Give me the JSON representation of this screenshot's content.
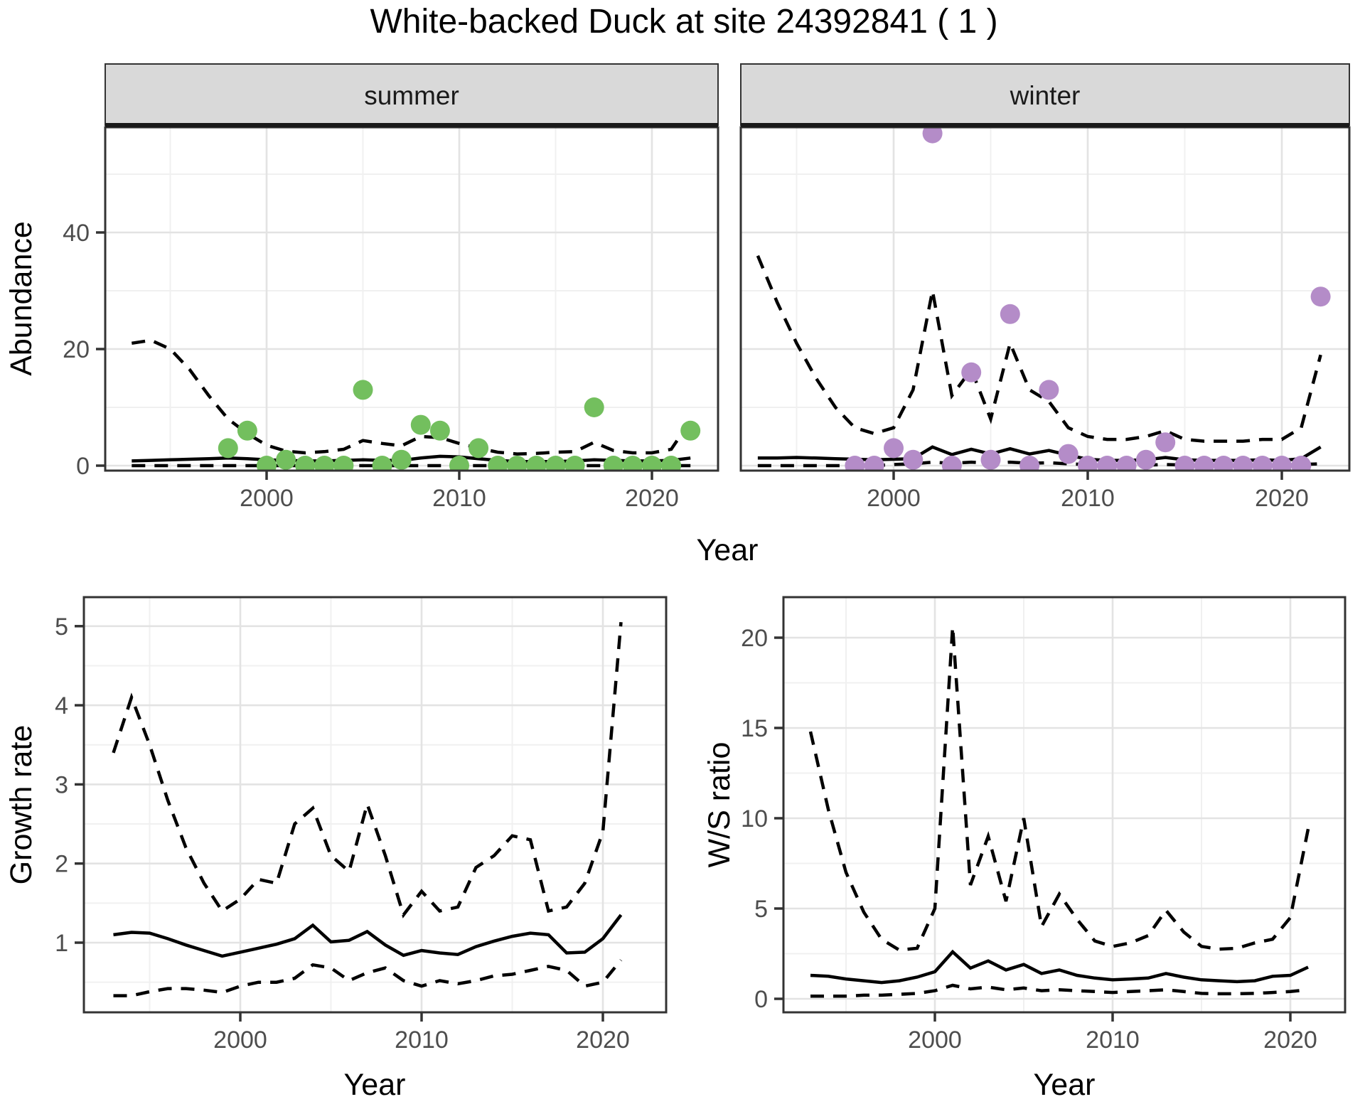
{
  "title": "White-backed Duck at site 24392841 ( 1 )",
  "labels": {
    "year": "Year",
    "abundance": "Abundance",
    "growth_rate": "Growth rate",
    "ws_ratio": "W/S ratio",
    "facet_summer": "summer",
    "facet_winter": "winter"
  },
  "colors": {
    "summer_point": "#73BF5E",
    "winter_point": "#B48CC8",
    "line": "#000000",
    "strip_bg": "#D9D9D9",
    "panel_border": "#333333",
    "grid_major": "#E3E3E3",
    "grid_minor": "#F0F0F0",
    "tick_label": "#4d4d4d"
  },
  "chart_data": [
    {
      "id": "abundance_summer",
      "type": "line",
      "facet": "summer",
      "xlabel": "Year",
      "ylabel": "Abundance",
      "x_ticks": [
        2000,
        2010,
        2020
      ],
      "y_ticks": [
        0,
        20,
        40
      ],
      "xlim": [
        1991.5,
        2023.5
      ],
      "ylim": [
        -2,
        58
      ],
      "grid": true,
      "legend": "none",
      "x": [
        1993,
        1994,
        1995,
        1996,
        1997,
        1998,
        1999,
        2000,
        2001,
        2002,
        2003,
        2004,
        2005,
        2006,
        2007,
        2008,
        2009,
        2010,
        2011,
        2012,
        2013,
        2014,
        2015,
        2016,
        2017,
        2018,
        2019,
        2020,
        2021,
        2022
      ],
      "series": [
        {
          "name": "upper_ci",
          "style": "dashed",
          "values": [
            21,
            21.5,
            20,
            16.5,
            12,
            8,
            5.5,
            3.5,
            2.5,
            2.2,
            2.4,
            2.8,
            4.3,
            3.8,
            3.4,
            5,
            4.8,
            3.8,
            3,
            2.3,
            2,
            2.1,
            2.3,
            2.4,
            4,
            2.6,
            2.2,
            2.2,
            2.8,
            7.7
          ]
        },
        {
          "name": "estimate",
          "style": "solid",
          "values": [
            0.8,
            0.9,
            1,
            1.1,
            1.2,
            1.3,
            1.2,
            1,
            0.9,
            0.8,
            0.8,
            0.9,
            1,
            0.9,
            0.9,
            1.3,
            1.6,
            1.5,
            1.2,
            0.9,
            0.7,
            0.7,
            0.7,
            0.8,
            1,
            0.9,
            0.8,
            0.8,
            0.9,
            1.3
          ]
        },
        {
          "name": "lower_ci",
          "style": "dashed",
          "values": [
            0,
            0,
            0,
            0,
            0,
            0,
            0,
            0,
            0,
            0,
            0,
            0,
            0,
            0,
            0,
            0,
            0,
            0,
            0,
            0,
            0,
            0,
            0,
            0,
            0,
            0,
            0,
            0,
            0,
            0
          ]
        }
      ],
      "points": {
        "color_key": "summer_point",
        "x": [
          1998,
          1999,
          2000,
          2001,
          2002,
          2003,
          2004,
          2005,
          2006,
          2007,
          2008,
          2009,
          2010,
          2011,
          2012,
          2013,
          2014,
          2015,
          2016,
          2017,
          2018,
          2019,
          2020,
          2021,
          2022
        ],
        "y": [
          3,
          6,
          0,
          1,
          0,
          0,
          0,
          13,
          0,
          1,
          7,
          6,
          0,
          3,
          0,
          0,
          0,
          0,
          0,
          10,
          0,
          0,
          0,
          0,
          6
        ]
      }
    },
    {
      "id": "abundance_winter",
      "type": "line",
      "facet": "winter",
      "xlabel": "Year",
      "ylabel": "Abundance",
      "x_ticks": [
        2000,
        2010,
        2020
      ],
      "y_ticks": [
        0,
        20,
        40
      ],
      "xlim": [
        1992,
        2023.5
      ],
      "ylim": [
        -2,
        58
      ],
      "grid": true,
      "legend": "none",
      "x": [
        1993,
        1994,
        1995,
        1996,
        1997,
        1998,
        1999,
        2000,
        2001,
        2002,
        2003,
        2004,
        2005,
        2006,
        2007,
        2008,
        2009,
        2010,
        2011,
        2012,
        2013,
        2014,
        2015,
        2016,
        2017,
        2018,
        2019,
        2020,
        2021,
        2022
      ],
      "series": [
        {
          "name": "upper_ci",
          "style": "dashed",
          "values": [
            36,
            28,
            21,
            15,
            10,
            6.5,
            5.5,
            6.5,
            13,
            30,
            12,
            16.5,
            8,
            21,
            13,
            11,
            6.5,
            5,
            4.5,
            4.5,
            5,
            6,
            4.5,
            4.2,
            4.2,
            4.2,
            4.5,
            4.5,
            6.5,
            19
          ]
        },
        {
          "name": "estimate",
          "style": "solid",
          "values": [
            1.3,
            1.3,
            1.4,
            1.3,
            1.2,
            1.1,
            1,
            1.1,
            1.2,
            3.2,
            1.9,
            2.8,
            2,
            2.9,
            2,
            2.6,
            1.8,
            1.1,
            0.9,
            0.9,
            1,
            1.4,
            1,
            0.9,
            0.9,
            0.9,
            1,
            0.9,
            1.2,
            3.2
          ]
        },
        {
          "name": "lower_ci",
          "style": "dashed",
          "values": [
            0,
            0,
            0,
            0,
            0,
            0,
            0,
            0.2,
            0.3,
            0.6,
            0.4,
            0.6,
            0.4,
            0.6,
            0.4,
            0.5,
            0.3,
            0.2,
            0.1,
            0.1,
            0.1,
            0.2,
            0.1,
            0.1,
            0.1,
            0.1,
            0.1,
            0.1,
            0.2,
            0.3
          ]
        }
      ],
      "points": {
        "color_key": "winter_point",
        "x": [
          1998,
          1999,
          2000,
          2001,
          2002,
          2003,
          2004,
          2005,
          2006,
          2007,
          2008,
          2009,
          2010,
          2011,
          2012,
          2013,
          2014,
          2015,
          2016,
          2017,
          2018,
          2019,
          2020,
          2021,
          2022
        ],
        "y": [
          0,
          0,
          3,
          1,
          57,
          0,
          16,
          1,
          26,
          0,
          13,
          2,
          0,
          0,
          0,
          1,
          4,
          0,
          0,
          0,
          0,
          0,
          0,
          0,
          29
        ]
      }
    },
    {
      "id": "growth_rate",
      "type": "line",
      "facet": null,
      "xlabel": "Year",
      "ylabel": "Growth rate",
      "x_ticks": [
        2000,
        2010,
        2020
      ],
      "y_ticks": [
        1,
        2,
        3,
        4,
        5
      ],
      "xlim": [
        1991.4,
        2024.3
      ],
      "ylim": [
        0.12,
        5.35
      ],
      "grid": true,
      "legend": "none",
      "x": [
        1993,
        1994,
        1995,
        1996,
        1997,
        1998,
        1999,
        2000,
        2001,
        2002,
        2003,
        2004,
        2005,
        2006,
        2007,
        2008,
        2009,
        2010,
        2011,
        2012,
        2013,
        2014,
        2015,
        2016,
        2017,
        2018,
        2019,
        2020,
        2021
      ],
      "series": [
        {
          "name": "upper_ci",
          "style": "dashed",
          "values": [
            3.4,
            4.1,
            3.5,
            2.8,
            2.2,
            1.75,
            1.4,
            1.55,
            1.8,
            1.75,
            2.5,
            2.7,
            2.1,
            1.9,
            2.75,
            2.1,
            1.35,
            1.65,
            1.4,
            1.45,
            1.95,
            2.1,
            2.35,
            2.3,
            1.4,
            1.45,
            1.75,
            2.4,
            5.05
          ]
        },
        {
          "name": "estimate",
          "style": "solid",
          "values": [
            1.1,
            1.13,
            1.12,
            1.05,
            0.97,
            0.9,
            0.83,
            0.88,
            0.93,
            0.98,
            1.05,
            1.22,
            1.01,
            1.03,
            1.14,
            0.97,
            0.84,
            0.9,
            0.87,
            0.85,
            0.95,
            1.02,
            1.08,
            1.12,
            1.1,
            0.87,
            0.88,
            1.05,
            1.35
          ]
        },
        {
          "name": "lower_ci",
          "style": "dashed",
          "values": [
            0.33,
            0.33,
            0.38,
            0.42,
            0.42,
            0.4,
            0.37,
            0.45,
            0.5,
            0.5,
            0.55,
            0.72,
            0.68,
            0.52,
            0.62,
            0.68,
            0.52,
            0.45,
            0.52,
            0.48,
            0.52,
            0.58,
            0.6,
            0.65,
            0.7,
            0.65,
            0.45,
            0.5,
            0.78
          ]
        }
      ],
      "points": null
    },
    {
      "id": "ws_ratio",
      "type": "line",
      "facet": null,
      "xlabel": "Year",
      "ylabel": "W/S ratio",
      "x_ticks": [
        2000,
        2010,
        2020
      ],
      "y_ticks": [
        0,
        5,
        10,
        15,
        20
      ],
      "xlim": [
        1991.5,
        2023.1
      ],
      "ylim": [
        -1.7,
        22.2
      ],
      "grid": true,
      "legend": "none",
      "x": [
        1993,
        1994,
        1995,
        1996,
        1997,
        1998,
        1999,
        2000,
        2001,
        2002,
        2003,
        2004,
        2005,
        2006,
        2007,
        2008,
        2009,
        2010,
        2011,
        2012,
        2013,
        2014,
        2015,
        2016,
        2017,
        2018,
        2019,
        2020,
        2021
      ],
      "series": [
        {
          "name": "upper_ci",
          "style": "dashed",
          "values": [
            14.8,
            10.5,
            7,
            4.8,
            3.3,
            2.7,
            2.8,
            5,
            20.6,
            6.3,
            9,
            5.4,
            10,
            4,
            5.8,
            4.4,
            3.2,
            2.9,
            3.1,
            3.5,
            4.9,
            3.7,
            2.9,
            2.75,
            2.8,
            3.1,
            3.3,
            4.5,
            9.4
          ]
        },
        {
          "name": "estimate",
          "style": "solid",
          "values": [
            1.3,
            1.25,
            1.1,
            1,
            0.9,
            1,
            1.2,
            1.5,
            2.6,
            1.7,
            2.1,
            1.6,
            1.9,
            1.4,
            1.6,
            1.3,
            1.15,
            1.05,
            1.1,
            1.15,
            1.4,
            1.2,
            1.05,
            1,
            0.95,
            1,
            1.25,
            1.3,
            1.75
          ]
        },
        {
          "name": "lower_ci",
          "style": "dashed",
          "values": [
            0.15,
            0.15,
            0.15,
            0.2,
            0.2,
            0.25,
            0.3,
            0.45,
            0.75,
            0.55,
            0.65,
            0.5,
            0.6,
            0.45,
            0.5,
            0.45,
            0.4,
            0.35,
            0.4,
            0.45,
            0.5,
            0.4,
            0.3,
            0.28,
            0.28,
            0.3,
            0.35,
            0.4,
            0.5
          ]
        }
      ],
      "points": null
    }
  ]
}
